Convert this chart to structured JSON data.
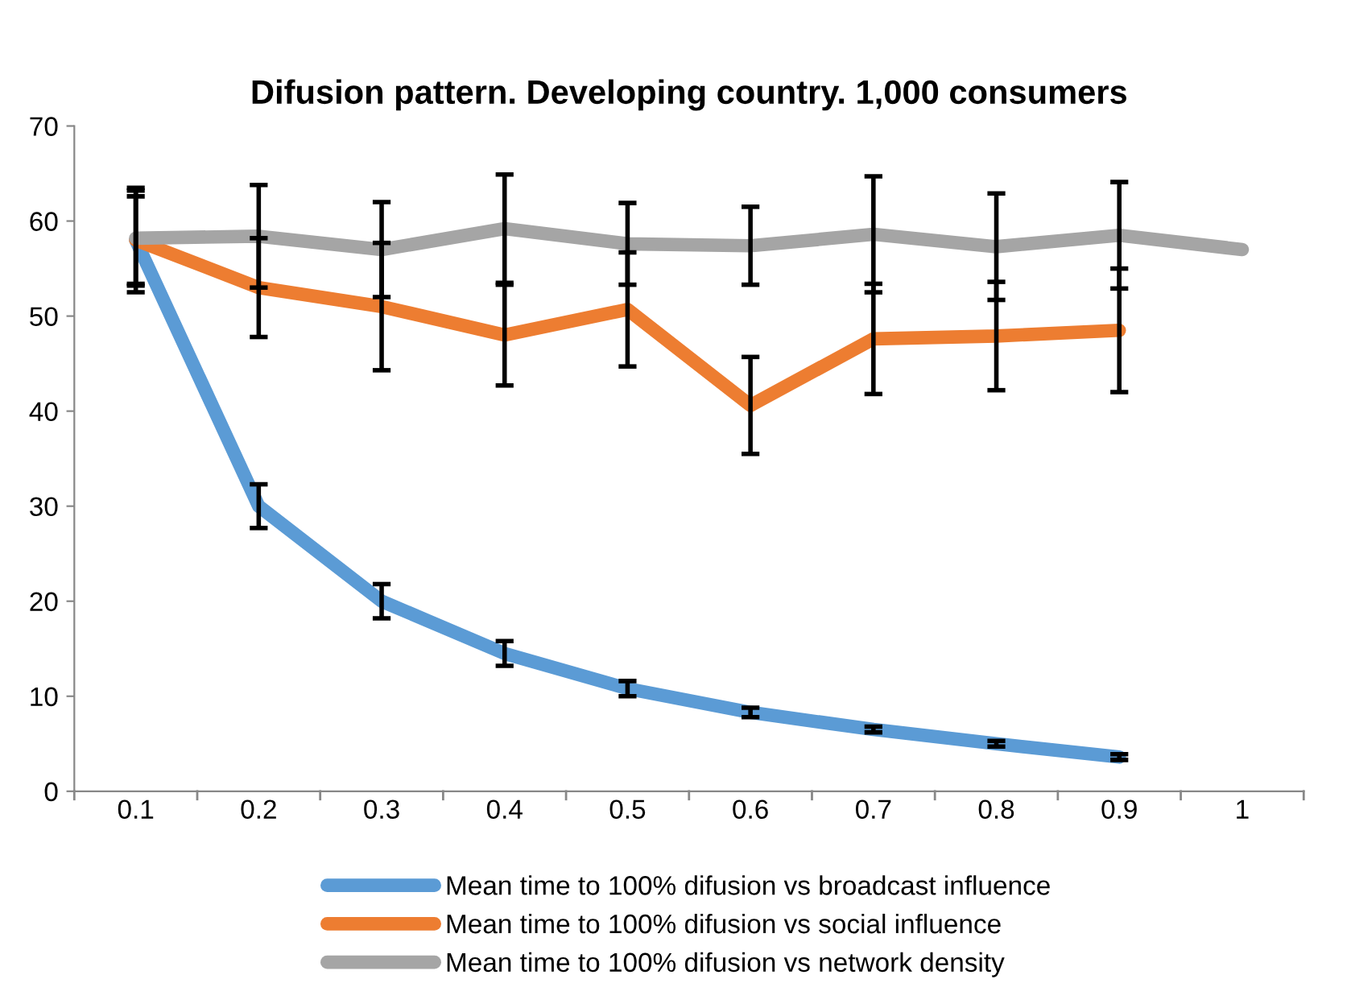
{
  "chart_data": {
    "type": "line",
    "title": "Difusion pattern. Developing country. 1,000 consumers",
    "categories": [
      "0.1",
      "0.2",
      "0.3",
      "0.4",
      "0.5",
      "0.6",
      "0.7",
      "0.8",
      "0.9",
      "1"
    ],
    "series": [
      {
        "name": "Mean time to 100% difusion vs broadcast influence",
        "color": "#5b9bd5",
        "values": [
          58,
          30,
          20,
          14.5,
          10.8,
          8.3,
          6.5,
          5,
          3.6,
          null
        ],
        "errors": [
          5.5,
          2.3,
          1.8,
          1.3,
          0.8,
          0.5,
          0.3,
          0.3,
          0.3,
          null
        ]
      },
      {
        "name": "Mean time to 100% difusion vs social influence",
        "color": "#ed7d31",
        "values": [
          58,
          53,
          51,
          48,
          50.7,
          40.6,
          47.6,
          47.9,
          48.5,
          null
        ],
        "errors": [
          4.6,
          5.2,
          6.7,
          5.3,
          6,
          5.1,
          5.8,
          5.7,
          6.5,
          null
        ]
      },
      {
        "name": "Mean time to 100% difusion vs network density",
        "color": "#a5a5a5",
        "values": [
          58.2,
          58.4,
          57,
          59.2,
          57.6,
          57.4,
          58.6,
          57.3,
          58.5,
          57
        ],
        "errors": [
          5,
          5.4,
          5,
          5.7,
          4.3,
          4.1,
          6.1,
          5.6,
          5.6,
          null
        ]
      }
    ],
    "ylim": [
      0,
      70
    ],
    "yticks": [
      0,
      10,
      20,
      30,
      40,
      50,
      60,
      70
    ],
    "grid": false,
    "legend": "bottom",
    "marker": "none",
    "line_style": "solid"
  }
}
